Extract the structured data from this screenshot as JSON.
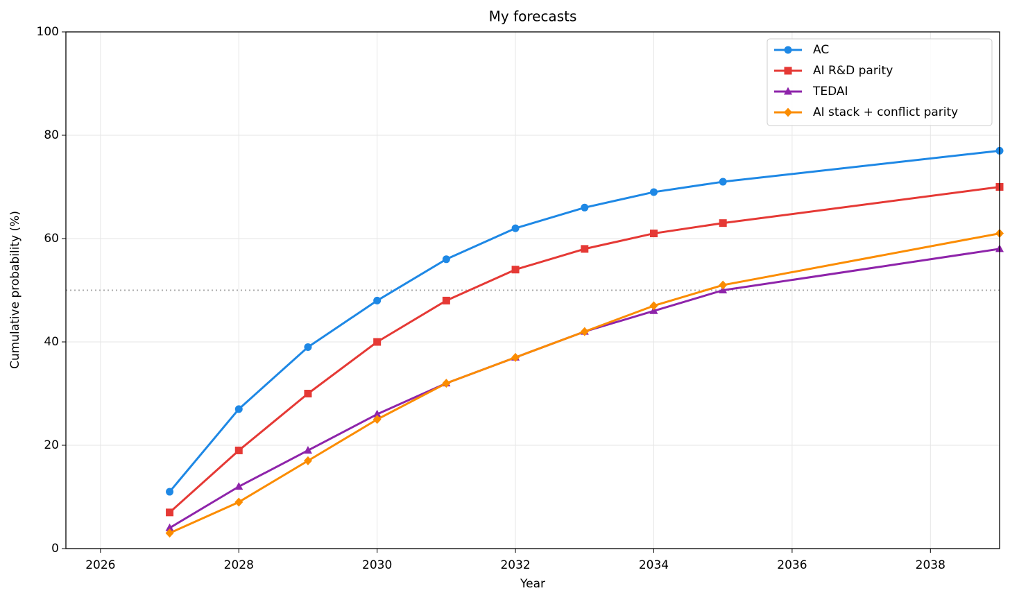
{
  "chart_data": {
    "type": "line",
    "title": "My forecasts",
    "x_label": "Year",
    "y_label": "Cumulative probability (%)",
    "x": [
      2027,
      2028,
      2029,
      2030,
      2031,
      2032,
      2033,
      2034,
      2035,
      2039
    ],
    "series": [
      {
        "name": "AC",
        "color": "#1e88e5",
        "marker": "circle",
        "values": [
          11,
          27,
          39,
          48,
          56,
          62,
          66,
          69,
          71,
          77
        ]
      },
      {
        "name": "AI R&D parity",
        "color": "#e53935",
        "marker": "square",
        "values": [
          7,
          19,
          30,
          40,
          48,
          54,
          58,
          61,
          63,
          70
        ]
      },
      {
        "name": "TEDAI",
        "color": "#8e24aa",
        "marker": "triangle",
        "values": [
          4,
          12,
          19,
          26,
          32,
          37,
          42,
          46,
          50,
          58
        ]
      },
      {
        "name": "AI stack + conflict parity",
        "color": "#fb8c00",
        "marker": "diamond",
        "values": [
          3,
          9,
          17,
          25,
          32,
          37,
          42,
          47,
          51,
          61
        ]
      }
    ],
    "reference_line": 50,
    "xlim": [
      2025.5,
      2039
    ],
    "xticks": [
      2026,
      2028,
      2030,
      2032,
      2034,
      2036,
      2038
    ],
    "ylim": [
      0,
      100
    ],
    "yticks": [
      0,
      20,
      40,
      60,
      80,
      100
    ],
    "grid": true,
    "legend": "upper right"
  }
}
